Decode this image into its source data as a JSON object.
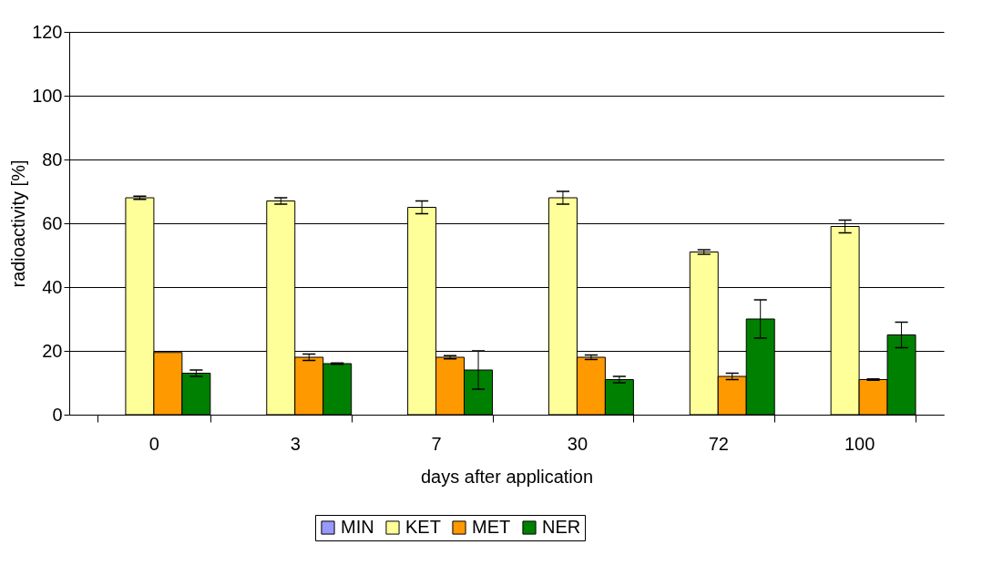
{
  "chart_data": {
    "type": "bar",
    "xlabel": "days after application",
    "ylabel": "radioactivity [%]",
    "categories": [
      "0",
      "3",
      "7",
      "30",
      "72",
      "100"
    ],
    "series": [
      {
        "name": "MIN",
        "color": "#9999ff",
        "values": [
          null,
          null,
          null,
          null,
          null,
          null
        ]
      },
      {
        "name": "KET",
        "color": "#ffff99",
        "values": [
          68,
          67,
          65,
          68,
          51,
          59
        ],
        "errors": [
          0.5,
          1,
          2,
          2,
          0.7,
          2
        ]
      },
      {
        "name": "MET",
        "color": "#ff9900",
        "values": [
          19.5,
          18,
          18,
          18,
          12,
          11
        ],
        "errors": [
          null,
          1,
          0.5,
          0.7,
          1,
          0.2
        ]
      },
      {
        "name": "NER",
        "color": "#008000",
        "values": [
          13,
          16,
          14,
          11,
          30,
          25
        ],
        "errors": [
          1,
          0.2,
          6,
          1,
          6,
          4
        ]
      }
    ],
    "ylim": [
      0,
      120
    ],
    "yticks": [
      0,
      20,
      40,
      60,
      80,
      100,
      120
    ],
    "grid": "y",
    "legend": "bottom"
  }
}
